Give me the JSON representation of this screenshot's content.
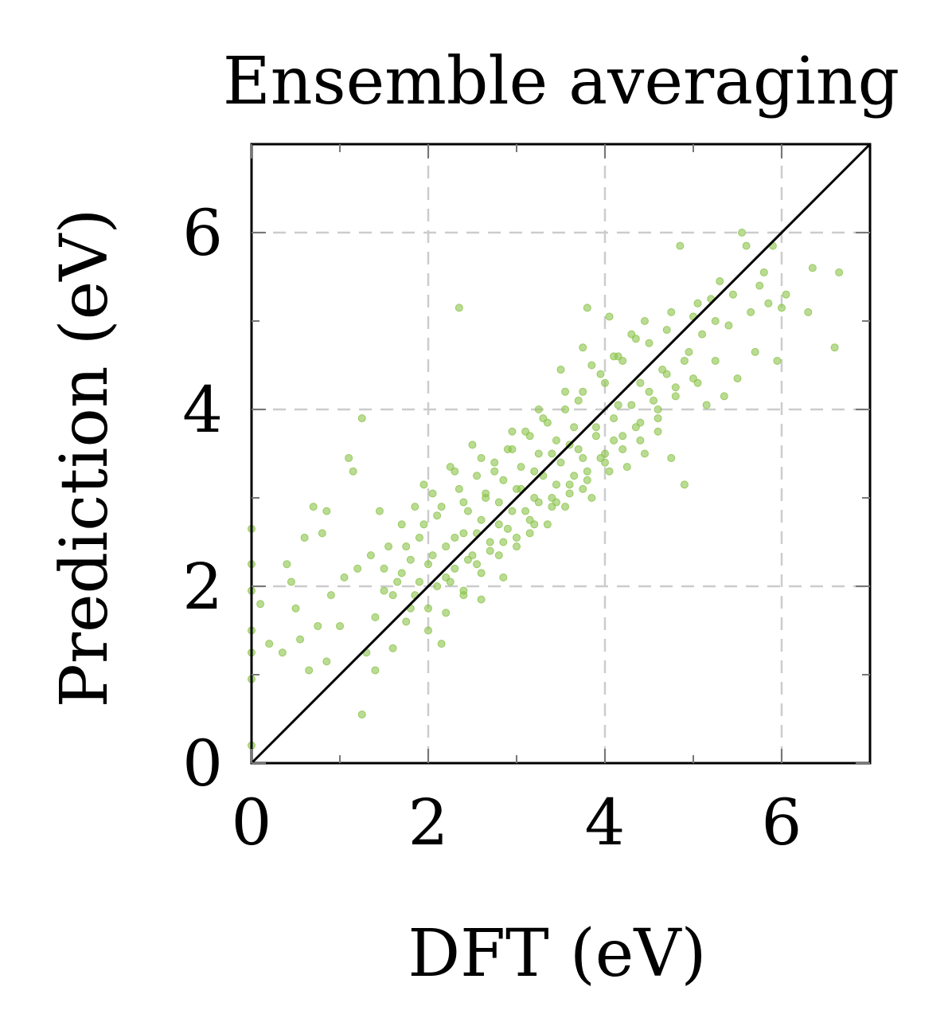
{
  "chart_data": {
    "type": "scatter",
    "title": "Ensemble averaging",
    "xlabel": "DFT (eV)",
    "ylabel": "Prediction (eV)",
    "xlim": [
      0,
      7
    ],
    "ylim": [
      0,
      7
    ],
    "xticks": [
      {
        "value": 0,
        "label": "0"
      },
      {
        "value": 2,
        "label": "2"
      },
      {
        "value": 4,
        "label": "4"
      },
      {
        "value": 6,
        "label": "6"
      }
    ],
    "yticks": [
      {
        "value": 0,
        "label": "0"
      },
      {
        "value": 2,
        "label": "2"
      },
      {
        "value": 4,
        "label": "4"
      },
      {
        "value": 6,
        "label": "6"
      }
    ],
    "minor_ticks": [
      1,
      3,
      5
    ],
    "grid": true,
    "reference_line": {
      "from": [
        0,
        0
      ],
      "to": [
        7,
        7
      ],
      "color": "#000000"
    },
    "marker_color": "#8bc34a",
    "series": [
      {
        "points": [
          [
            0.0,
            0.2
          ],
          [
            0.0,
            0.95
          ],
          [
            0.0,
            1.25
          ],
          [
            0.0,
            1.5
          ],
          [
            0.0,
            1.95
          ],
          [
            0.0,
            2.25
          ],
          [
            0.0,
            2.65
          ],
          [
            0.1,
            1.8
          ],
          [
            0.2,
            1.35
          ],
          [
            0.35,
            1.25
          ],
          [
            0.4,
            2.25
          ],
          [
            0.45,
            2.05
          ],
          [
            0.5,
            1.75
          ],
          [
            0.55,
            1.4
          ],
          [
            0.6,
            2.55
          ],
          [
            0.65,
            1.05
          ],
          [
            0.7,
            2.9
          ],
          [
            0.75,
            1.55
          ],
          [
            0.8,
            2.6
          ],
          [
            0.85,
            1.15
          ],
          [
            0.85,
            2.85
          ],
          [
            0.9,
            1.9
          ],
          [
            1.0,
            1.55
          ],
          [
            1.05,
            2.1
          ],
          [
            1.1,
            3.45
          ],
          [
            1.15,
            3.3
          ],
          [
            1.2,
            2.2
          ],
          [
            1.25,
            0.55
          ],
          [
            1.25,
            3.9
          ],
          [
            1.3,
            1.25
          ],
          [
            1.35,
            2.35
          ],
          [
            1.4,
            1.05
          ],
          [
            1.4,
            1.65
          ],
          [
            1.45,
            2.85
          ],
          [
            1.5,
            1.95
          ],
          [
            1.55,
            2.45
          ],
          [
            1.6,
            1.3
          ],
          [
            1.65,
            2.05
          ],
          [
            1.7,
            2.7
          ],
          [
            1.75,
            1.6
          ],
          [
            1.8,
            2.3
          ],
          [
            1.85,
            1.9
          ],
          [
            1.9,
            2.55
          ],
          [
            1.95,
            3.15
          ],
          [
            2.0,
            1.75
          ],
          [
            2.05,
            2.35
          ],
          [
            2.1,
            2.8
          ],
          [
            2.15,
            1.35
          ],
          [
            2.2,
            2.1
          ],
          [
            2.25,
            3.35
          ],
          [
            2.3,
            2.55
          ],
          [
            2.35,
            5.15
          ],
          [
            2.4,
            1.95
          ],
          [
            2.4,
            2.95
          ],
          [
            2.45,
            2.3
          ],
          [
            2.5,
            3.6
          ],
          [
            2.55,
            2.6
          ],
          [
            2.6,
            1.85
          ],
          [
            2.65,
            3.0
          ],
          [
            2.7,
            2.4
          ],
          [
            2.75,
            3.3
          ],
          [
            2.8,
            2.7
          ],
          [
            2.85,
            2.1
          ],
          [
            2.9,
            3.55
          ],
          [
            2.95,
            2.85
          ],
          [
            3.0,
            2.45
          ],
          [
            3.05,
            3.1
          ],
          [
            3.1,
            3.75
          ],
          [
            3.15,
            2.6
          ],
          [
            3.2,
            3.3
          ],
          [
            3.25,
            2.95
          ],
          [
            3.3,
            3.9
          ],
          [
            3.35,
            2.7
          ],
          [
            3.4,
            3.5
          ],
          [
            3.45,
            3.15
          ],
          [
            3.5,
            4.45
          ],
          [
            3.55,
            2.9
          ],
          [
            3.6,
            3.6
          ],
          [
            3.65,
            3.25
          ],
          [
            3.7,
            4.1
          ],
          [
            3.75,
            4.7
          ],
          [
            3.75,
            3.45
          ],
          [
            3.8,
            5.15
          ],
          [
            3.85,
            3.0
          ],
          [
            3.9,
            3.8
          ],
          [
            3.95,
            3.45
          ],
          [
            4.0,
            4.3
          ],
          [
            4.05,
            5.05
          ],
          [
            4.1,
            3.65
          ],
          [
            4.15,
            4.05
          ],
          [
            4.2,
            4.55
          ],
          [
            4.25,
            3.35
          ],
          [
            4.3,
            4.85
          ],
          [
            4.35,
            3.8
          ],
          [
            4.4,
            4.3
          ],
          [
            4.45,
            3.5
          ],
          [
            4.5,
            4.75
          ],
          [
            4.55,
            4.1
          ],
          [
            4.6,
            3.9
          ],
          [
            4.65,
            4.45
          ],
          [
            4.7,
            4.9
          ],
          [
            4.75,
            3.45
          ],
          [
            4.8,
            4.25
          ],
          [
            4.85,
            5.85
          ],
          [
            4.9,
            3.15
          ],
          [
            4.95,
            4.65
          ],
          [
            5.0,
            5.05
          ],
          [
            5.05,
            4.3
          ],
          [
            5.1,
            4.85
          ],
          [
            5.15,
            4.05
          ],
          [
            5.2,
            5.25
          ],
          [
            5.25,
            4.55
          ],
          [
            5.3,
            5.45
          ],
          [
            5.35,
            4.15
          ],
          [
            5.4,
            4.95
          ],
          [
            5.45,
            5.3
          ],
          [
            5.5,
            4.35
          ],
          [
            5.55,
            6.0
          ],
          [
            5.6,
            5.85
          ],
          [
            5.65,
            5.1
          ],
          [
            5.7,
            4.65
          ],
          [
            5.75,
            5.4
          ],
          [
            5.8,
            5.55
          ],
          [
            5.85,
            5.2
          ],
          [
            5.9,
            5.85
          ],
          [
            5.95,
            4.55
          ],
          [
            6.0,
            5.15
          ],
          [
            6.05,
            5.3
          ],
          [
            6.3,
            5.1
          ],
          [
            6.35,
            5.6
          ],
          [
            6.6,
            4.7
          ],
          [
            6.65,
            5.55
          ],
          [
            1.6,
            1.9
          ],
          [
            1.7,
            2.15
          ],
          [
            1.8,
            1.75
          ],
          [
            1.9,
            2.05
          ],
          [
            2.0,
            2.25
          ],
          [
            2.1,
            2.0
          ],
          [
            2.2,
            2.45
          ],
          [
            2.3,
            2.2
          ],
          [
            2.4,
            2.6
          ],
          [
            2.5,
            2.35
          ],
          [
            2.6,
            2.75
          ],
          [
            2.7,
            2.5
          ],
          [
            2.8,
            2.95
          ],
          [
            2.9,
            2.65
          ],
          [
            3.0,
            3.1
          ],
          [
            3.1,
            2.85
          ],
          [
            3.2,
            3.0
          ],
          [
            3.3,
            3.25
          ],
          [
            3.4,
            3.0
          ],
          [
            3.5,
            3.4
          ],
          [
            3.6,
            3.15
          ],
          [
            3.7,
            3.55
          ],
          [
            3.8,
            3.3
          ],
          [
            3.9,
            3.7
          ],
          [
            4.0,
            3.5
          ],
          [
            4.1,
            3.9
          ],
          [
            4.2,
            3.7
          ],
          [
            4.3,
            4.05
          ],
          [
            4.4,
            3.85
          ],
          [
            4.5,
            4.2
          ],
          [
            4.6,
            4.0
          ],
          [
            4.7,
            4.4
          ],
          [
            4.8,
            4.15
          ],
          [
            4.9,
            4.55
          ],
          [
            5.0,
            4.35
          ],
          [
            1.75,
            2.45
          ],
          [
            1.95,
            2.7
          ],
          [
            2.15,
            2.9
          ],
          [
            2.35,
            3.1
          ],
          [
            2.55,
            3.25
          ],
          [
            2.75,
            3.4
          ],
          [
            2.95,
            3.55
          ],
          [
            3.15,
            3.7
          ],
          [
            3.35,
            3.85
          ],
          [
            3.55,
            4.0
          ],
          [
            3.75,
            4.2
          ],
          [
            3.95,
            4.4
          ],
          [
            4.15,
            4.6
          ],
          [
            4.35,
            4.8
          ],
          [
            2.0,
            1.5
          ],
          [
            2.2,
            1.7
          ],
          [
            2.4,
            1.9
          ],
          [
            2.6,
            2.15
          ],
          [
            2.8,
            2.35
          ],
          [
            3.0,
            2.55
          ],
          [
            3.2,
            2.7
          ],
          [
            3.4,
            2.9
          ],
          [
            3.6,
            3.05
          ],
          [
            3.8,
            3.2
          ],
          [
            4.0,
            3.4
          ],
          [
            4.2,
            3.55
          ],
          [
            4.4,
            3.65
          ],
          [
            4.6,
            3.75
          ],
          [
            2.45,
            2.85
          ],
          [
            2.65,
            3.05
          ],
          [
            2.85,
            3.2
          ],
          [
            3.05,
            3.35
          ],
          [
            3.25,
            3.5
          ],
          [
            3.45,
            3.65
          ],
          [
            3.65,
            3.8
          ],
          [
            2.25,
            2.05
          ],
          [
            2.55,
            2.25
          ],
          [
            2.85,
            2.5
          ],
          [
            3.15,
            2.75
          ],
          [
            3.45,
            2.95
          ],
          [
            3.75,
            3.1
          ],
          [
            4.05,
            3.3
          ],
          [
            1.5,
            2.2
          ],
          [
            1.85,
            2.9
          ],
          [
            2.05,
            3.05
          ],
          [
            2.3,
            3.3
          ],
          [
            2.6,
            3.45
          ],
          [
            2.95,
            3.75
          ],
          [
            3.25,
            4.0
          ],
          [
            3.55,
            4.2
          ],
          [
            3.85,
            4.5
          ],
          [
            4.1,
            4.6
          ],
          [
            4.45,
            5.0
          ],
          [
            4.75,
            5.1
          ],
          [
            5.05,
            5.2
          ],
          [
            5.25,
            5.0
          ]
        ]
      }
    ]
  }
}
